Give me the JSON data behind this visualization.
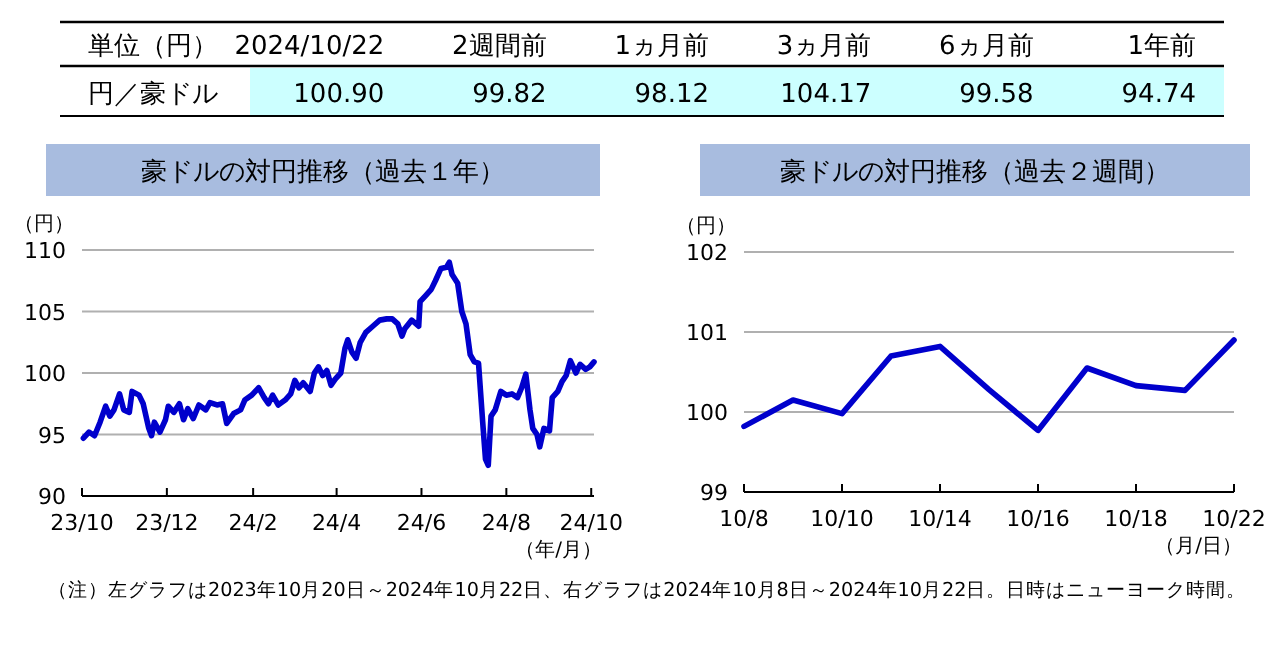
{
  "chart_data": [
    {
      "type": "other",
      "title": "単位（円）",
      "ylabel": "円／豪ドル",
      "categories": [
        "2024/10/22",
        "2週間前",
        "1ヵ月前",
        "3ヵ月前",
        "6ヵ月前",
        "1年前"
      ],
      "values": [
        100.9,
        99.82,
        98.12,
        104.17,
        99.58,
        94.74
      ],
      "value_labels": [
        "100.90",
        "99.82",
        "98.12",
        "104.17",
        "99.58",
        "94.74"
      ],
      "color": "#ccffff"
    },
    {
      "type": "line",
      "title": "豪ドルの対円推移（過去１年）",
      "ylabel": "（円）",
      "xlabel": "（年/月）",
      "color": "#0000cc",
      "grid": "y",
      "xlim": [
        "2023-10-20",
        "2024-10-22"
      ],
      "ylim": [
        90,
        110
      ],
      "yticks": [
        90,
        95,
        100,
        105,
        110
      ],
      "xticks": [
        {
          "value": "2023-10-20",
          "label": "23/10"
        },
        {
          "value": "2023-12-20",
          "label": "23/12"
        },
        {
          "value": "2024-02-20",
          "label": "24/2"
        },
        {
          "value": "2024-04-20",
          "label": "24/4"
        },
        {
          "value": "2024-06-20",
          "label": "24/6"
        },
        {
          "value": "2024-08-20",
          "label": "24/8"
        },
        {
          "value": "2024-10-20",
          "label": "24/10"
        }
      ],
      "x": [
        "2023-10-21",
        "2023-10-25",
        "2023-10-29",
        "2023-11-02",
        "2023-11-06",
        "2023-11-09",
        "2023-11-12",
        "2023-11-16",
        "2023-11-19",
        "2023-11-23",
        "2023-11-25",
        "2023-11-30",
        "2023-12-03",
        "2023-12-07",
        "2023-12-09",
        "2023-12-11",
        "2023-12-15",
        "2023-12-19",
        "2023-12-21",
        "2023-12-25",
        "2023-12-29",
        "2024-01-01",
        "2024-01-04",
        "2024-01-08",
        "2024-01-12",
        "2024-01-17",
        "2024-01-20",
        "2024-01-25",
        "2024-01-29",
        "2024-02-01",
        "2024-02-06",
        "2024-02-11",
        "2024-02-14",
        "2024-02-19",
        "2024-02-24",
        "2024-02-28",
        "2024-03-02",
        "2024-03-05",
        "2024-03-09",
        "2024-03-14",
        "2024-03-18",
        "2024-03-21",
        "2024-03-24",
        "2024-03-27",
        "2024-04-01",
        "2024-04-04",
        "2024-04-07",
        "2024-04-10",
        "2024-04-13",
        "2024-04-16",
        "2024-04-19",
        "2024-04-23",
        "2024-04-26",
        "2024-04-28",
        "2024-05-01",
        "2024-05-04",
        "2024-05-07",
        "2024-05-11",
        "2024-05-16",
        "2024-05-21",
        "2024-05-26",
        "2024-05-30",
        "2024-06-03",
        "2024-06-06",
        "2024-06-08",
        "2024-06-13",
        "2024-06-18",
        "2024-06-19",
        "2024-06-23",
        "2024-06-27",
        "2024-06-30",
        "2024-07-04",
        "2024-07-08",
        "2024-07-10",
        "2024-07-12",
        "2024-07-16",
        "2024-07-19",
        "2024-07-22",
        "2024-07-25",
        "2024-07-28",
        "2024-07-31",
        "2024-08-03",
        "2024-08-05",
        "2024-08-07",
        "2024-08-09",
        "2024-08-12",
        "2024-08-16",
        "2024-08-20",
        "2024-08-24",
        "2024-08-28",
        "2024-08-31",
        "2024-09-03",
        "2024-09-06",
        "2024-09-08",
        "2024-09-11",
        "2024-09-13",
        "2024-09-16",
        "2024-09-20",
        "2024-09-22",
        "2024-09-26",
        "2024-09-29",
        "2024-10-02",
        "2024-10-05",
        "2024-10-09",
        "2024-10-12",
        "2024-10-16",
        "2024-10-19",
        "2024-10-22"
      ],
      "values": [
        94.7,
        95.2,
        94.9,
        96.0,
        97.3,
        96.5,
        97.0,
        98.3,
        97.0,
        96.8,
        98.5,
        98.2,
        97.5,
        95.5,
        94.9,
        96.0,
        95.2,
        96.2,
        97.3,
        96.8,
        97.5,
        96.2,
        97.1,
        96.3,
        97.4,
        97.0,
        97.6,
        97.4,
        97.5,
        95.9,
        96.7,
        97.0,
        97.8,
        98.2,
        98.8,
        98.0,
        97.5,
        98.2,
        97.4,
        97.8,
        98.3,
        99.4,
        98.8,
        99.2,
        98.5,
        100.0,
        100.5,
        99.8,
        100.2,
        99.0,
        99.5,
        100.0,
        102.0,
        102.7,
        101.7,
        101.2,
        102.5,
        103.3,
        103.8,
        104.3,
        104.4,
        104.4,
        104.0,
        103.0,
        103.6,
        104.3,
        103.8,
        105.8,
        106.3,
        106.8,
        107.5,
        108.5,
        108.6,
        109.0,
        108.0,
        107.3,
        105.0,
        104.0,
        101.5,
        100.9,
        100.8,
        96.0,
        93.0,
        92.5,
        96.5,
        97.0,
        98.5,
        98.2,
        98.3,
        98.0,
        98.8,
        99.9,
        97.0,
        95.5,
        95.0,
        94.0,
        95.5,
        95.3,
        98.0,
        98.5,
        99.3,
        99.8,
        101.0,
        100.0,
        100.7,
        100.3,
        100.5,
        100.9
      ],
      "annotations": [
        "（注）左グラフは2023年10月20日～2024年10月22日、右グラフは2024年10月8日～2024年10月22日。日時はニューヨーク時間。"
      ]
    },
    {
      "type": "line",
      "title": "豪ドルの対円推移（過去２週間）",
      "ylabel": "（円）",
      "xlabel": "（月/日）",
      "color": "#0000cc",
      "grid": "y",
      "ylim": [
        99,
        102
      ],
      "yticks": [
        99,
        100,
        101,
        102
      ],
      "categories": [
        "10/8",
        null,
        "10/10",
        null,
        "10/14",
        null,
        "10/16",
        null,
        "10/18",
        null,
        "10/22"
      ],
      "values": [
        99.82,
        100.15,
        99.98,
        100.7,
        100.82,
        100.28,
        99.77,
        100.55,
        100.33,
        100.27,
        100.9
      ]
    }
  ]
}
